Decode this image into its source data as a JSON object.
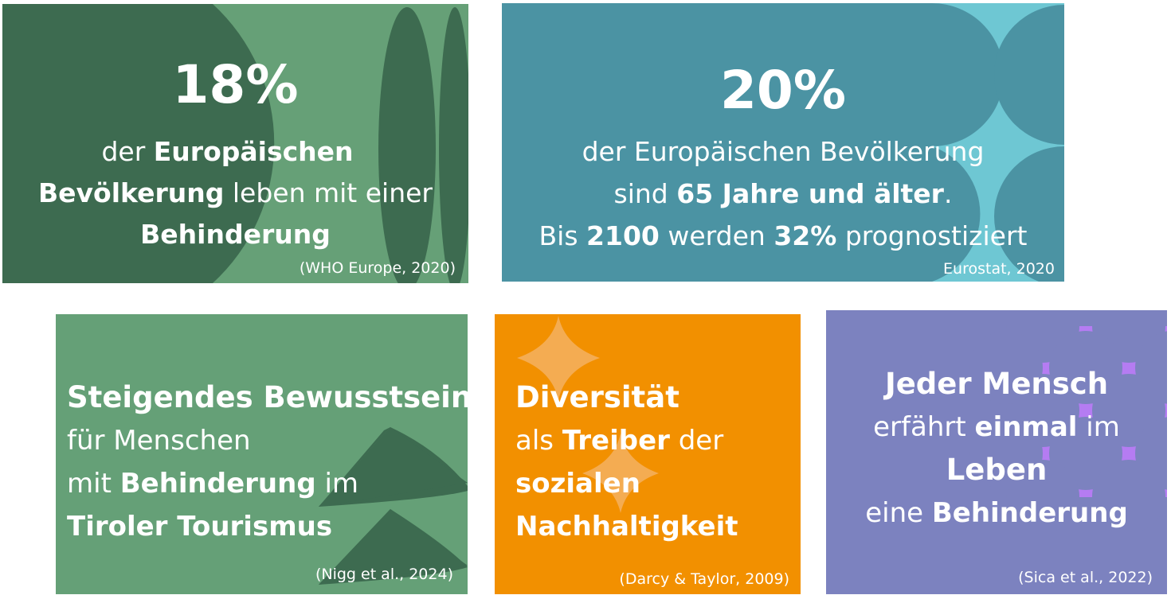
{
  "card1": {
    "percent": "18%",
    "l1a": "der ",
    "l1b": "Europäischen",
    "l2a": "Bevölkerung",
    "l2b": " leben mit einer",
    "l3": "Behinderung",
    "source": "(WHO Europe, 2020)"
  },
  "card2": {
    "percent": "20%",
    "l1": "der Europäischen Bevölkerung",
    "l2a": "sind ",
    "l2b": "65 Jahre und älter",
    "l2c": ".",
    "l3a": "Bis ",
    "l3b": "2100",
    "l3c": " werden ",
    "l3d": "32%",
    "l3e": " prognostiziert",
    "source": "Eurostat, 2020"
  },
  "card3": {
    "title": "Steigendes Bewusstsein",
    "l1": "für Menschen",
    "l2a": "mit ",
    "l2b": "Behinderung",
    "l2c": " im",
    "l3": "Tiroler Tourismus",
    "source": "(Nigg et al., 2024)"
  },
  "card4": {
    "title": "Diversität",
    "l1a": "als ",
    "l1b": "Treiber",
    "l1c": " der",
    "l2": "sozialen",
    "l3": "Nachhaltigkeit",
    "source": "(Darcy & Taylor, 2009)"
  },
  "card5": {
    "title": "Jeder Mensch",
    "l1a": "erfährt ",
    "l1b": "einmal",
    "l1c": " im",
    "l2": "Leben",
    "l3a": "eine ",
    "l3b": "Behinderung",
    "source": "(Sica et al., 2022)"
  },
  "colors": {
    "dark_green": "#3d6b50",
    "light_green": "#66a077",
    "teal": "#4b93a3",
    "light_teal": "#6ec7d3",
    "orange": "#f29000",
    "purple": "#7c82bf",
    "violet": "#b57cf2"
  }
}
